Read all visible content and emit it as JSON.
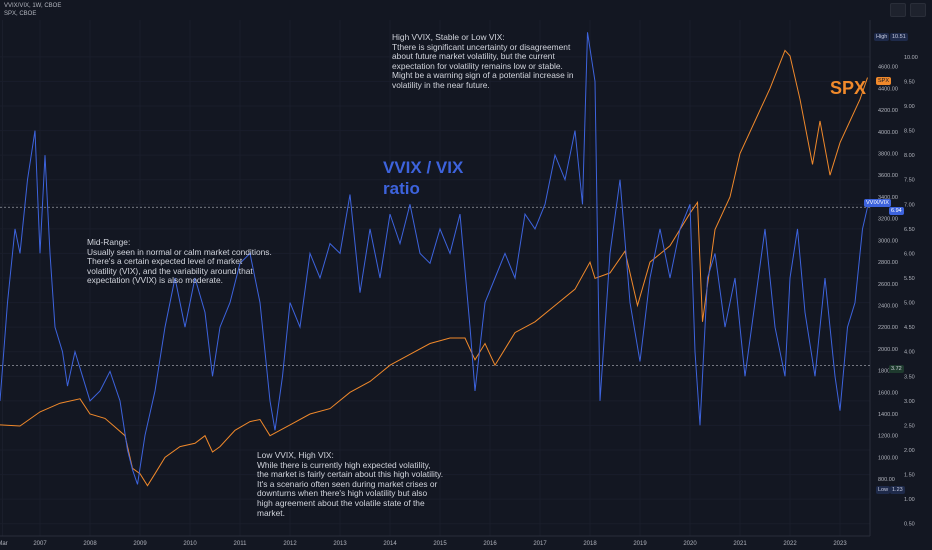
{
  "header": {
    "line1": "VVIX/VIX, 1W, CBOE",
    "line2": "SPX, CBOE"
  },
  "annotations": {
    "top": "High VVIX, Stable or Low VIX:\nTthere is significant uncertainty or disagreement\nabout future market volatility, but the current\nexpectation for volatility remains low or stable.\nMight be a warning sign of a potential increase in\nvolatility in the near future.",
    "middle": "Mid-Range:\nUsually seen in normal or calm market conditions.\nThere's a certain expected level of market\nvolatility (VIX), and the variability around that\nexpectation (VVIX) is also moderate.",
    "bottom": "Low VVIX, High VIX:\nWhile there is currently high expected volatility,\nthe market is fairly certain about this high volatility.\nIt's a scenario often seen during market crises or\ndownturns when there's high volatility but also\nhigh agreement about the volatile state of the\nmarket.",
    "ratio_label_1": "VVIX / VIX",
    "ratio_label_2": "ratio",
    "spx_label": "SPX"
  },
  "price_tags": {
    "high_label": "High",
    "high_value": "10.51",
    "vvix_label": "VVIX/VIX",
    "vvix_value": "6.94",
    "spx_label": "SPX",
    "level_value": "3.72",
    "low_label": "Low",
    "low_value": "1.23"
  },
  "colors": {
    "vvix": "#3d63dd",
    "spx": "#f0892b",
    "background": "#131722",
    "grid": "#1f2330",
    "text": "#b2b5be",
    "annotation": "#d1d4dc"
  },
  "chart_data": {
    "type": "line",
    "x_ticks": [
      "Mar",
      "2007",
      "2008",
      "2009",
      "2010",
      "2011",
      "2012",
      "2013",
      "2014",
      "2015",
      "2016",
      "2017",
      "2018",
      "2019",
      "2020",
      "2021",
      "2022",
      "2023"
    ],
    "xlim": [
      2006.2,
      2023.6
    ],
    "right_axis_labels": [
      "10.00",
      "9.50",
      "9.00",
      "8.50",
      "8.00",
      "7.50",
      "7.00",
      "6.50",
      "6.00",
      "5.50",
      "5.00",
      "4.50",
      "4.00",
      "3.50",
      "3.00",
      "2.50",
      "2.00",
      "1.50",
      "1.00",
      "0.50"
    ],
    "spx_axis_labels": [
      "4600.00",
      "4400.00",
      "4200.00",
      "4000.00",
      "3800.00",
      "3600.00",
      "3400.00",
      "3200.00",
      "3000.00",
      "2800.00",
      "2600.00",
      "2400.00",
      "2200.00",
      "2000.00",
      "1800.00",
      "1600.00",
      "1400.00",
      "1200.00",
      "1000.00",
      "800.00"
    ],
    "ratio_ylim": [
      0.25,
      10.75
    ],
    "horizontal_levels": [
      6.94,
      3.72
    ],
    "series": [
      {
        "name": "VVIX / VIX ratio",
        "x": [
          2006.2,
          2006.35,
          2006.5,
          2006.6,
          2006.75,
          2006.9,
          2007.0,
          2007.1,
          2007.2,
          2007.3,
          2007.45,
          2007.55,
          2007.7,
          2007.85,
          2008.0,
          2008.2,
          2008.4,
          2008.6,
          2008.75,
          2008.85,
          2008.95,
          2009.1,
          2009.3,
          2009.5,
          2009.7,
          2009.9,
          2010.1,
          2010.3,
          2010.45,
          2010.6,
          2010.8,
          2011.0,
          2011.2,
          2011.4,
          2011.6,
          2011.7,
          2011.85,
          2012.0,
          2012.2,
          2012.4,
          2012.6,
          2012.8,
          2013.0,
          2013.2,
          2013.4,
          2013.6,
          2013.8,
          2014.0,
          2014.2,
          2014.4,
          2014.6,
          2014.8,
          2015.0,
          2015.2,
          2015.4,
          2015.6,
          2015.7,
          2015.9,
          2016.1,
          2016.3,
          2016.5,
          2016.7,
          2016.9,
          2017.1,
          2017.3,
          2017.5,
          2017.7,
          2017.85,
          2017.95,
          2018.1,
          2018.2,
          2018.4,
          2018.6,
          2018.8,
          2019.0,
          2019.2,
          2019.4,
          2019.6,
          2019.8,
          2020.0,
          2020.1,
          2020.2,
          2020.35,
          2020.5,
          2020.7,
          2020.9,
          2021.1,
          2021.3,
          2021.5,
          2021.7,
          2021.9,
          2022.0,
          2022.15,
          2022.3,
          2022.5,
          2022.7,
          2022.9,
          2023.0,
          2023.15,
          2023.3,
          2023.45,
          2023.55
        ],
        "y": [
          3.0,
          5.0,
          6.5,
          6.0,
          7.5,
          8.5,
          6.0,
          8.0,
          6.0,
          4.5,
          4.0,
          3.3,
          4.0,
          3.5,
          3.0,
          3.2,
          3.6,
          3.0,
          2.0,
          1.6,
          1.3,
          2.3,
          3.2,
          4.5,
          5.5,
          4.5,
          5.5,
          4.8,
          3.5,
          4.5,
          5.0,
          5.8,
          6.0,
          5.0,
          3.0,
          2.4,
          3.5,
          5.0,
          4.5,
          6.0,
          5.5,
          6.2,
          6.0,
          7.2,
          5.2,
          6.5,
          5.5,
          6.8,
          6.2,
          7.0,
          6.0,
          5.8,
          6.5,
          6.0,
          6.8,
          4.5,
          3.2,
          5.0,
          5.5,
          6.0,
          5.5,
          6.8,
          6.5,
          7.0,
          8.0,
          7.5,
          8.5,
          7.0,
          10.5,
          9.5,
          3.0,
          6.0,
          7.5,
          5.0,
          3.8,
          5.5,
          6.5,
          5.5,
          6.5,
          7.0,
          4.0,
          2.5,
          5.5,
          6.0,
          4.5,
          5.5,
          3.5,
          5.0,
          6.5,
          4.5,
          3.5,
          5.5,
          6.5,
          4.8,
          3.5,
          5.5,
          3.5,
          2.8,
          4.5,
          5.0,
          6.5,
          6.94
        ]
      },
      {
        "name": "SPX",
        "x": [
          2006.2,
          2006.6,
          2007.0,
          2007.4,
          2007.8,
          2008.0,
          2008.3,
          2008.5,
          2008.7,
          2008.85,
          2009.0,
          2009.15,
          2009.3,
          2009.5,
          2009.8,
          2010.1,
          2010.3,
          2010.45,
          2010.6,
          2010.9,
          2011.2,
          2011.4,
          2011.6,
          2011.8,
          2012.0,
          2012.4,
          2012.8,
          2013.2,
          2013.6,
          2014.0,
          2014.4,
          2014.8,
          2015.2,
          2015.5,
          2015.7,
          2015.9,
          2016.1,
          2016.5,
          2016.9,
          2017.3,
          2017.7,
          2018.0,
          2018.1,
          2018.4,
          2018.7,
          2018.95,
          2019.2,
          2019.6,
          2020.0,
          2020.15,
          2020.25,
          2020.5,
          2020.8,
          2021.0,
          2021.3,
          2021.6,
          2021.9,
          2022.0,
          2022.2,
          2022.45,
          2022.6,
          2022.8,
          2023.0,
          2023.2,
          2023.4,
          2023.55
        ],
        "y": [
          1300,
          1290,
          1420,
          1500,
          1540,
          1400,
          1360,
          1280,
          1200,
          900,
          850,
          740,
          850,
          1000,
          1100,
          1130,
          1200,
          1050,
          1100,
          1250,
          1330,
          1350,
          1200,
          1250,
          1300,
          1400,
          1450,
          1600,
          1700,
          1850,
          1950,
          2050,
          2100,
          2100,
          1900,
          2050,
          1850,
          2150,
          2250,
          2400,
          2550,
          2800,
          2650,
          2700,
          2900,
          2400,
          2800,
          2950,
          3250,
          3350,
          2250,
          3100,
          3400,
          3800,
          4100,
          4400,
          4750,
          4700,
          4300,
          3700,
          4100,
          3600,
          3900,
          4100,
          4300,
          4500
        ]
      }
    ]
  }
}
